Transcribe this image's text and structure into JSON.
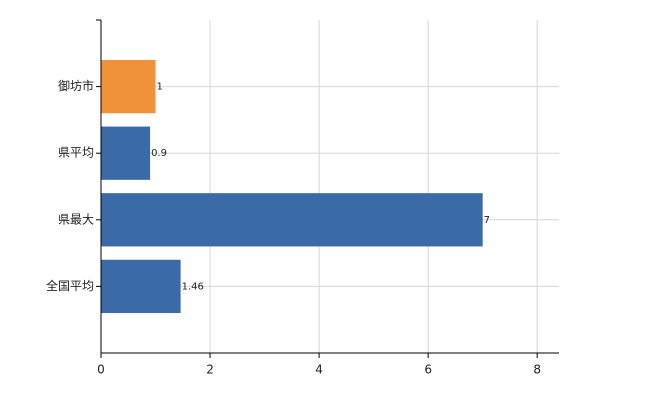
{
  "chart_data": {
    "type": "bar",
    "orientation": "horizontal",
    "categories": [
      "御坊市",
      "県平均",
      "県最大",
      "全国平均"
    ],
    "values": [
      1,
      0.9,
      7,
      1.46
    ],
    "colors": [
      "#f0923a",
      "#3a6aa8",
      "#3a6aa8",
      "#3a6aa8"
    ],
    "xlim": [
      0,
      8.4
    ],
    "xticks": [
      0,
      2,
      4,
      6,
      8
    ],
    "grid": true
  }
}
